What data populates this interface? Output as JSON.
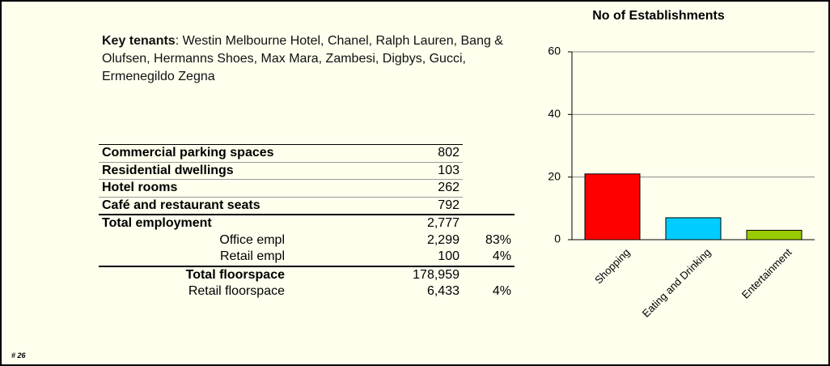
{
  "key_tenants": {
    "label": "Key tenants",
    "text": ": Westin Melbourne Hotel, Chanel, Ralph Lauren, Bang & Olufsen, Hermanns Shoes, Max Mara, Zambesi, Digbys, Gucci, Ermenegildo Zegna"
  },
  "table": {
    "rows": [
      [
        "Commercial parking spaces",
        "802"
      ],
      [
        "Residential dwellings",
        "103"
      ],
      [
        "Hotel rooms",
        "262"
      ],
      [
        "Café and restaurant seats",
        "792"
      ],
      [
        "Total employment",
        "2,777"
      ],
      [
        "Office empl",
        "2,299",
        "83%"
      ],
      [
        "Retail empl",
        "100",
        "4%"
      ],
      [
        "Total floorspace",
        "178,959"
      ],
      [
        "Retail floorspace",
        "6,433",
        "4%"
      ]
    ]
  },
  "footer": "# 26",
  "chart_data": {
    "type": "bar",
    "title": "No of Establishments",
    "categories": [
      "Shopping",
      "Eating and Drinking",
      "Entertainment"
    ],
    "values": [
      21,
      7,
      3
    ],
    "colors": [
      "#ff0000",
      "#00ccff",
      "#99cc00"
    ],
    "ylim": [
      0,
      60
    ],
    "yticks": [
      0,
      20,
      40,
      60
    ],
    "grid": true
  }
}
